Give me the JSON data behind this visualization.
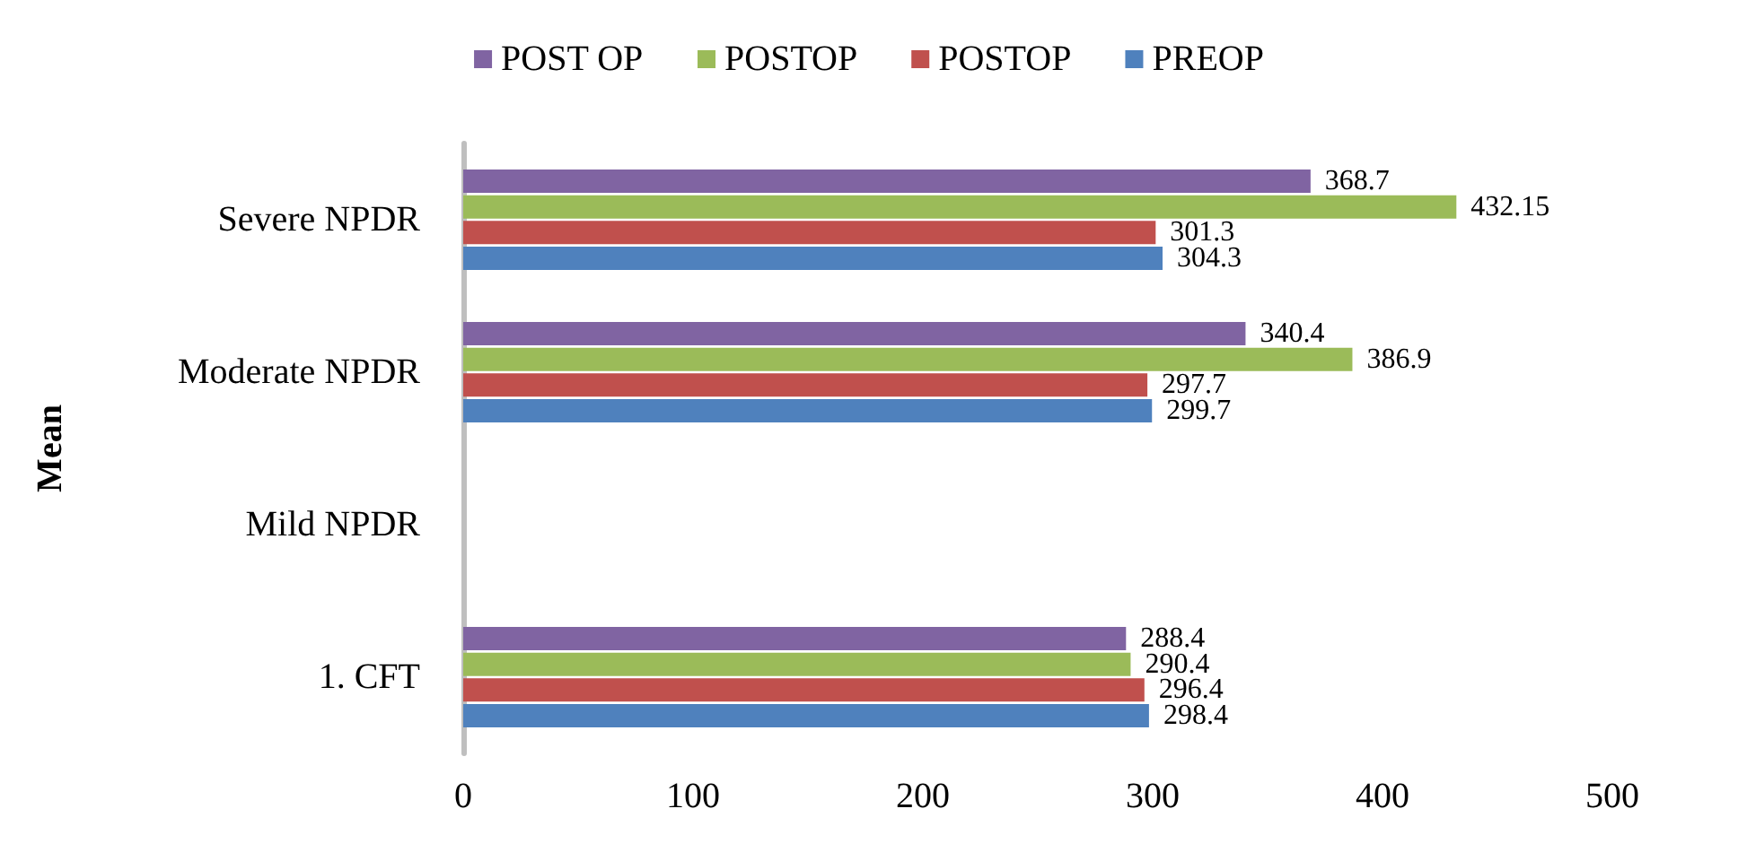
{
  "chart_data": {
    "type": "bar",
    "orientation": "horizontal",
    "ylabel": "Mean",
    "categories": [
      "Severe NPDR",
      "Moderate NPDR",
      "Mild NPDR",
      "1. CFT"
    ],
    "series": [
      {
        "name": "PREOP",
        "color": "#4f81bd",
        "values": [
          304.3,
          299.7,
          null,
          298.4
        ]
      },
      {
        "name": "POSTOP",
        "color": "#c0504d",
        "values": [
          301.3,
          297.7,
          null,
          296.4
        ]
      },
      {
        "name": "POSTOP",
        "color": "#9bbb59",
        "values": [
          432.15,
          386.9,
          null,
          290.4
        ]
      },
      {
        "name": "POST OP",
        "color": "#8064a2",
        "values": [
          368.7,
          340.4,
          null,
          288.4
        ]
      }
    ],
    "xlim": [
      0,
      500
    ],
    "xticks": [
      0,
      100,
      200,
      300,
      400,
      500
    ],
    "data_labels": true,
    "grid": false,
    "legend": "top"
  }
}
